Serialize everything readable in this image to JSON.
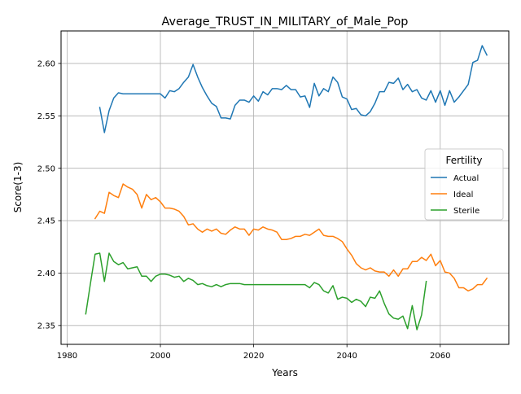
{
  "chart_data": {
    "type": "line",
    "title": "Average_TRUST_IN_MILITARY_of_Male_Pop",
    "xlabel": "Years",
    "ylabel": "Score(1-3)",
    "xlim": [
      1978.7,
      2074.7
    ],
    "ylim": [
      2.332,
      2.631
    ],
    "xticks": [
      1980,
      2000,
      2020,
      2040,
      2060
    ],
    "xtick_labels": [
      "1980",
      "2000",
      "2020",
      "2040",
      "2060"
    ],
    "yticks": [
      2.35,
      2.4,
      2.45,
      2.5,
      2.55,
      2.6
    ],
    "ytick_labels": [
      "2.35",
      "2.40",
      "2.45",
      "2.50",
      "2.55",
      "2.60"
    ],
    "grid": true,
    "legend": {
      "title": "Fertility",
      "placement": "center-right"
    },
    "series": [
      {
        "name": "Actual",
        "color": "#1f77b4",
        "x": [
          1987,
          1988,
          1989,
          1990,
          1991,
          1992,
          1993,
          1994,
          1995,
          1996,
          1997,
          1998,
          1999,
          2000,
          2001,
          2002,
          2003,
          2004,
          2005,
          2006,
          2007,
          2008,
          2009,
          2010,
          2011,
          2012,
          2013,
          2014,
          2015,
          2016,
          2017,
          2018,
          2019,
          2020,
          2021,
          2022,
          2023,
          2024,
          2025,
          2026,
          2027,
          2028,
          2029,
          2030,
          2031,
          2032,
          2033,
          2034,
          2035,
          2036,
          2037,
          2038,
          2039,
          2040,
          2041,
          2042,
          2043,
          2044,
          2045,
          2046,
          2047,
          2048,
          2049,
          2050,
          2051,
          2052,
          2053,
          2054,
          2055,
          2056,
          2057,
          2058,
          2059,
          2060,
          2061,
          2062,
          2063,
          2064,
          2065,
          2066,
          2067,
          2068,
          2069,
          2070
        ],
        "y": [
          2.558,
          2.534,
          2.555,
          2.567,
          2.572,
          2.571,
          2.571,
          2.571,
          2.571,
          2.571,
          2.571,
          2.571,
          2.571,
          2.571,
          2.567,
          2.574,
          2.573,
          2.576,
          2.582,
          2.587,
          2.599,
          2.587,
          2.577,
          2.569,
          2.562,
          2.559,
          2.548,
          2.548,
          2.547,
          2.56,
          2.565,
          2.565,
          2.563,
          2.569,
          2.564,
          2.573,
          2.57,
          2.576,
          2.576,
          2.575,
          2.579,
          2.575,
          2.575,
          2.568,
          2.569,
          2.558,
          2.581,
          2.569,
          2.576,
          2.573,
          2.587,
          2.582,
          2.568,
          2.566,
          2.556,
          2.557,
          2.551,
          2.55,
          2.554,
          2.562,
          2.573,
          2.573,
          2.582,
          2.581,
          2.586,
          2.575,
          2.58,
          2.573,
          2.575,
          2.567,
          2.565,
          2.574,
          2.563,
          2.574,
          2.56,
          2.574,
          2.563,
          2.568,
          2.574,
          2.58,
          2.601,
          2.603,
          2.617,
          2.608
        ]
      },
      {
        "name": "Ideal",
        "color": "#ff7f0e",
        "x": [
          1986,
          1987,
          1988,
          1989,
          1990,
          1991,
          1992,
          1993,
          1994,
          1995,
          1996,
          1997,
          1998,
          1999,
          2000,
          2001,
          2002,
          2003,
          2004,
          2005,
          2006,
          2007,
          2008,
          2009,
          2010,
          2011,
          2012,
          2013,
          2014,
          2015,
          2016,
          2017,
          2018,
          2019,
          2020,
          2021,
          2022,
          2023,
          2024,
          2025,
          2026,
          2027,
          2028,
          2029,
          2030,
          2031,
          2032,
          2033,
          2034,
          2035,
          2036,
          2037,
          2038,
          2039,
          2040,
          2041,
          2042,
          2043,
          2044,
          2045,
          2046,
          2047,
          2048,
          2049,
          2050,
          2051,
          2052,
          2053,
          2054,
          2055,
          2056,
          2057,
          2058,
          2059,
          2060,
          2061,
          2062,
          2063,
          2064,
          2065,
          2066,
          2067,
          2068,
          2069,
          2070
        ],
        "y": [
          2.452,
          2.459,
          2.457,
          2.477,
          2.474,
          2.472,
          2.485,
          2.482,
          2.48,
          2.475,
          2.462,
          2.475,
          2.47,
          2.472,
          2.468,
          2.462,
          2.462,
          2.461,
          2.459,
          2.454,
          2.446,
          2.447,
          2.442,
          2.439,
          2.442,
          2.44,
          2.442,
          2.438,
          2.437,
          2.441,
          2.444,
          2.442,
          2.442,
          2.436,
          2.442,
          2.441,
          2.444,
          2.442,
          2.441,
          2.439,
          2.432,
          2.432,
          2.433,
          2.435,
          2.435,
          2.437,
          2.436,
          2.439,
          2.442,
          2.436,
          2.435,
          2.435,
          2.433,
          2.43,
          2.423,
          2.417,
          2.409,
          2.405,
          2.403,
          2.405,
          2.402,
          2.401,
          2.401,
          2.397,
          2.403,
          2.397,
          2.404,
          2.404,
          2.411,
          2.411,
          2.415,
          2.412,
          2.418,
          2.407,
          2.412,
          2.401,
          2.4,
          2.395,
          2.386,
          2.386,
          2.383,
          2.385,
          2.389,
          2.389,
          2.395
        ]
      },
      {
        "name": "Sterile",
        "color": "#2ca02c",
        "x": [
          1984,
          1985,
          1986,
          1987,
          1988,
          1989,
          1990,
          1991,
          1992,
          1993,
          1994,
          1995,
          1996,
          1997,
          1998,
          1999,
          2000,
          2001,
          2002,
          2003,
          2004,
          2005,
          2006,
          2007,
          2008,
          2009,
          2010,
          2011,
          2012,
          2013,
          2014,
          2015,
          2016,
          2017,
          2018,
          2019,
          2020,
          2021,
          2022,
          2023,
          2024,
          2025,
          2026,
          2027,
          2028,
          2029,
          2030,
          2031,
          2032,
          2033,
          2034,
          2035,
          2036,
          2037,
          2038,
          2039,
          2040,
          2041,
          2042,
          2043,
          2044,
          2045,
          2046,
          2047,
          2048,
          2049,
          2050,
          2051,
          2052,
          2053,
          2054,
          2055,
          2056,
          2057
        ],
        "y": [
          2.361,
          2.39,
          2.418,
          2.419,
          2.392,
          2.419,
          2.411,
          2.408,
          2.41,
          2.404,
          2.405,
          2.406,
          2.397,
          2.397,
          2.392,
          2.397,
          2.399,
          2.399,
          2.398,
          2.396,
          2.397,
          2.392,
          2.395,
          2.393,
          2.389,
          2.39,
          2.388,
          2.387,
          2.389,
          2.387,
          2.389,
          2.39,
          2.39,
          2.39,
          2.389,
          2.389,
          2.389,
          2.389,
          2.389,
          2.389,
          2.389,
          2.389,
          2.389,
          2.389,
          2.389,
          2.389,
          2.389,
          2.389,
          2.386,
          2.391,
          2.389,
          2.383,
          2.381,
          2.388,
          2.375,
          2.377,
          2.376,
          2.372,
          2.375,
          2.373,
          2.368,
          2.377,
          2.376,
          2.383,
          2.371,
          2.361,
          2.357,
          2.356,
          2.359,
          2.347,
          2.369,
          2.346,
          2.36,
          2.392
        ]
      }
    ]
  }
}
